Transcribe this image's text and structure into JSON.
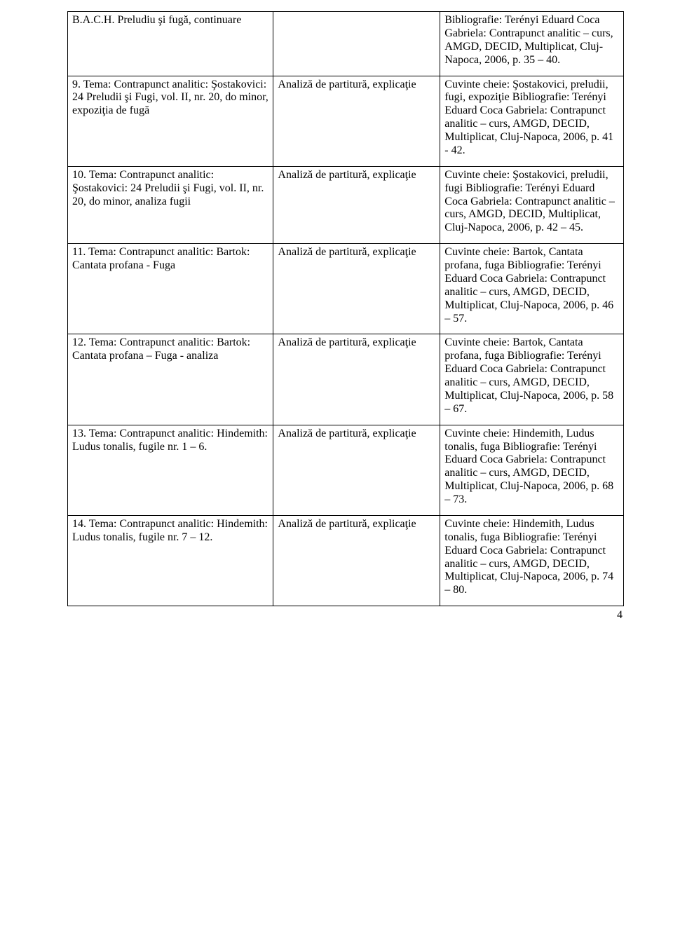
{
  "table": {
    "columns": [
      "topic",
      "method",
      "keywords"
    ],
    "col_widths_pct": [
      37,
      30,
      33
    ],
    "border_color": "#000000",
    "font": {
      "family": "Times New Roman",
      "size_pt": 12,
      "color": "#000000"
    },
    "background_color": "#ffffff",
    "rows": [
      {
        "topic": "B.A.C.H. Preludiu şi fugă, continuare",
        "method": "",
        "keywords": "Bibliografie: Terényi Eduard Coca Gabriela: Contrapunct analitic – curs, AMGD, DECID, Multiplicat, Cluj-Napoca, 2006, p. 35 – 40."
      },
      {
        "topic": "9.\nTema: Contrapunct analitic: Şostakovici: 24 Preludii şi Fugi, vol. II, nr. 20, do minor, expoziţia de fugă",
        "method": "Analiză de partitură, explicaţie",
        "keywords": "Cuvinte cheie: Şostakovici, preludii, fugi, expoziţie\nBibliografie: Terényi Eduard Coca Gabriela: Contrapunct analitic – curs, AMGD, DECID, Multiplicat, Cluj-Napoca, 2006, p. 41 - 42."
      },
      {
        "topic": "10.\nTema: Contrapunct analitic: Şostakovici: 24 Preludii şi Fugi, vol. II, nr. 20, do minor, analiza fugii",
        "method": "Analiză de partitură, explicaţie",
        "keywords": "Cuvinte cheie: Şostakovici, preludii, fugi\nBibliografie: Terényi Eduard Coca Gabriela: Contrapunct analitic – curs, AMGD, DECID, Multiplicat, Cluj-Napoca, 2006, p. 42 – 45."
      },
      {
        "topic": "11.\nTema: Contrapunct analitic: Bartok: Cantata profana - Fuga",
        "method": "Analiză de partitură, explicaţie",
        "keywords": "Cuvinte cheie: Bartok, Cantata profana, fuga\nBibliografie: Terényi Eduard Coca Gabriela: Contrapunct analitic – curs, AMGD, DECID, Multiplicat, Cluj-Napoca, 2006, p. 46 – 57."
      },
      {
        "topic": "12.\nTema: Contrapunct analitic: Bartok: Cantata profana – Fuga - analiza",
        "method": "Analiză de partitură, explicaţie",
        "keywords": "Cuvinte cheie: Bartok, Cantata profana, fuga\nBibliografie: Terényi Eduard Coca Gabriela: Contrapunct analitic – curs, AMGD, DECID, Multiplicat, Cluj-Napoca, 2006, p. 58 – 67."
      },
      {
        "topic": "13.\nTema: Contrapunct analitic: Hindemith: Ludus tonalis, fugile nr. 1 – 6.",
        "method": "Analiză de partitură, explicaţie",
        "keywords": "Cuvinte cheie: Hindemith, Ludus tonalis, fuga\nBibliografie: Terényi Eduard Coca Gabriela: Contrapunct analitic – curs, AMGD, DECID, Multiplicat, Cluj-Napoca, 2006, p. 68 – 73."
      },
      {
        "topic": "14.\nTema: Contrapunct analitic: Hindemith: Ludus tonalis, fugile nr. 7 – 12.",
        "method": "Analiză de partitură, explicaţie",
        "keywords": "Cuvinte cheie: Hindemith, Ludus tonalis, fuga\nBibliografie: Terényi Eduard Coca Gabriela: Contrapunct analitic – curs, AMGD, DECID, Multiplicat, Cluj-Napoca, 2006, p. 74 – 80."
      }
    ]
  },
  "page_number": "4"
}
